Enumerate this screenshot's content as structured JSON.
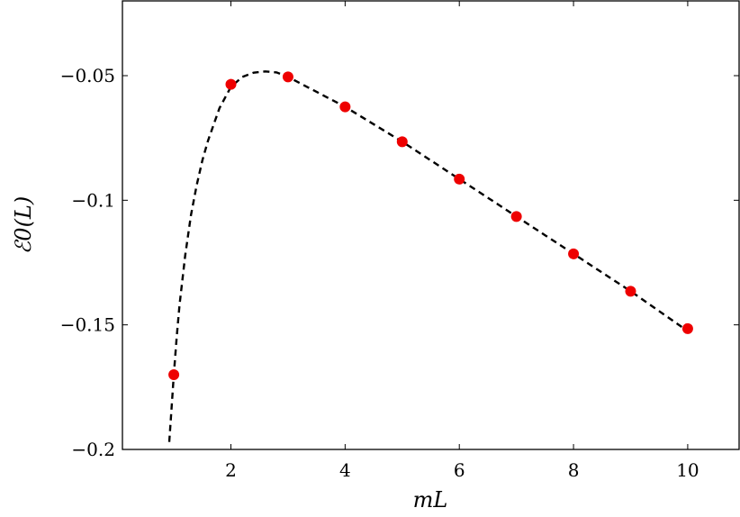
{
  "chart_data": {
    "type": "scatter",
    "title": "",
    "xlabel": "mL",
    "ylabel": "ℰ0(L)",
    "xlim": [
      0.1,
      10.9
    ],
    "ylim": [
      -0.2,
      -0.02
    ],
    "grid": false,
    "x_ticks": [
      2,
      4,
      6,
      8,
      10
    ],
    "x_tick_labels": [
      "2",
      "4",
      "6",
      "8",
      "10"
    ],
    "y_ticks": [
      -0.05,
      -0.1,
      -0.15,
      -0.2
    ],
    "y_tick_labels": [
      "−0.05",
      "−0.1",
      "−0.15",
      "−0.2"
    ],
    "series": [
      {
        "style": "markers",
        "color": "#ee0000",
        "x": [
          1,
          2,
          3,
          4,
          5,
          6,
          7,
          8,
          9,
          10
        ],
        "y": [
          -0.17,
          -0.0535,
          -0.0505,
          -0.0625,
          -0.0765,
          -0.0915,
          -0.1065,
          -0.1215,
          -0.1365,
          -0.1515
        ]
      },
      {
        "style": "dashed-line",
        "color": "#000000",
        "x": [
          0.92,
          0.95,
          1.0,
          1.05,
          1.1,
          1.2,
          1.3,
          1.4,
          1.5,
          1.6,
          1.8,
          2.0,
          2.2,
          2.4,
          2.6,
          2.8,
          3.0,
          3.5,
          4.0,
          4.5,
          5.0,
          5.5,
          6.0,
          6.5,
          7.0,
          7.5,
          8.0,
          8.5,
          9.0,
          9.5,
          10.0
        ],
        "y": [
          -0.197,
          -0.187,
          -0.17,
          -0.155,
          -0.142,
          -0.122,
          -0.106,
          -0.094,
          -0.084,
          -0.076,
          -0.063,
          -0.0545,
          -0.0505,
          -0.0488,
          -0.0483,
          -0.0487,
          -0.0505,
          -0.0565,
          -0.0625,
          -0.0695,
          -0.0765,
          -0.084,
          -0.0915,
          -0.099,
          -0.1065,
          -0.114,
          -0.1215,
          -0.129,
          -0.1365,
          -0.1445,
          -0.1525
        ]
      }
    ]
  }
}
